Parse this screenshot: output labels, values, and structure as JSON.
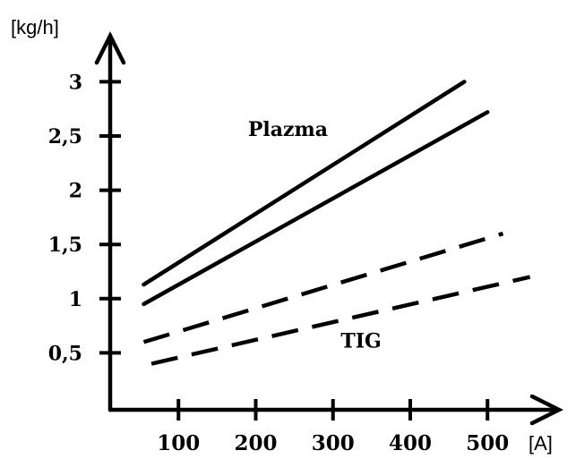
{
  "chart_data": {
    "type": "line",
    "xlabel": "[A]",
    "ylabel": "[kg/h]",
    "x_ticks": [
      100,
      200,
      300,
      400,
      500
    ],
    "y_ticks": [
      0.5,
      1,
      1.5,
      2,
      2.5,
      3
    ],
    "y_tick_labels": [
      "0,5",
      "1",
      "1,5",
      "2",
      "2,5",
      "3"
    ],
    "grid": false,
    "series": [
      {
        "x": [
          55,
          470
        ],
        "y": [
          1.13,
          3.0
        ],
        "style": "solid"
      },
      {
        "x": [
          55,
          500
        ],
        "y": [
          0.95,
          2.72
        ],
        "style": "solid"
      },
      {
        "x": [
          55,
          520
        ],
        "y": [
          0.6,
          1.6
        ],
        "style": "dashed"
      },
      {
        "x": [
          65,
          555
        ],
        "y": [
          0.4,
          1.2
        ],
        "style": "dashed"
      }
    ],
    "annotations": [
      {
        "text": "Plazma",
        "x": 190,
        "y": 2.5
      },
      {
        "text": "TIG",
        "x": 310,
        "y": 0.55
      }
    ]
  }
}
